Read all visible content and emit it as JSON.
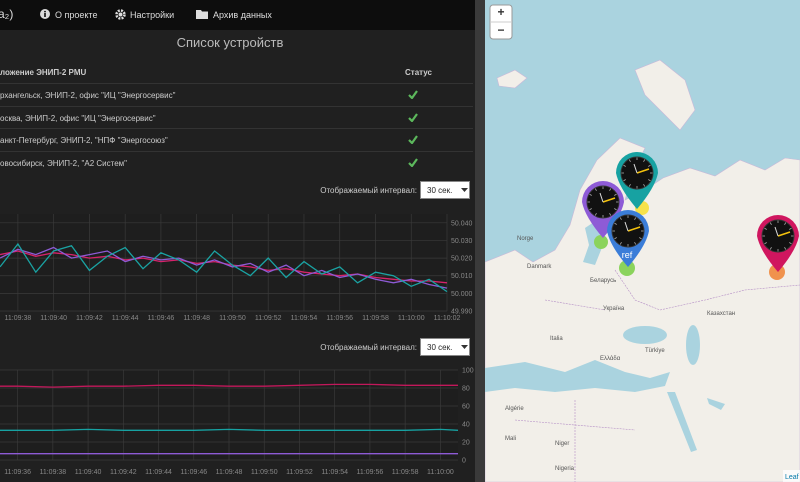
{
  "nav": {
    "logo": "(a₂)",
    "items": [
      "О проекте",
      "Настройки",
      "Архив данных"
    ]
  },
  "devices": {
    "title": "Список устройств",
    "header": [
      "ложение ЭНИП-2 PMU",
      "Статус"
    ],
    "rows": [
      "рхангельск, ЭНИП-2, офис \"ИЦ \"Энергосервис\"",
      "осква, ЭНИП-2, офис \"ИЦ \"Энергосервис\"",
      "анкт-Петербург, ЭНИП-2, \"НПФ \"Энергосоюз\"",
      "овосибирск, ЭНИП-2, \"А2 Систем\""
    ]
  },
  "chart_data": [
    {
      "type": "line",
      "control_label": "Отображаемый интервал:",
      "control_value": "30 сек.",
      "grid": true,
      "x": [
        "11:09:37",
        "11:09:38",
        "11:09:39",
        "11:09:40",
        "11:09:41",
        "11:09:42",
        "11:09:43",
        "11:09:44",
        "11:09:45",
        "11:09:46",
        "11:09:47",
        "11:09:48",
        "11:09:49",
        "11:09:50",
        "11:09:51",
        "11:09:52",
        "11:09:53",
        "11:09:54",
        "11:09:55",
        "11:09:56",
        "11:09:57",
        "11:09:58",
        "11:09:59",
        "11:10:00",
        "11:10:01",
        "11:10:02"
      ],
      "xlim": [
        "11:09:37",
        "11:10:02"
      ],
      "xticks": [
        "11:09:38",
        "11:09:40",
        "11:09:42",
        "11:09:44",
        "11:09:46",
        "11:09:48",
        "11:09:50",
        "11:09:52",
        "11:09:54",
        "11:09:56",
        "11:09:58",
        "11:10:00",
        "11:10:02"
      ],
      "ylim": [
        49.99,
        50.045
      ],
      "yticks": [
        {
          "value": 49.99,
          "label": "49.990"
        },
        {
          "value": 50.0,
          "label": "50.000"
        },
        {
          "value": 50.01,
          "label": "50.010"
        },
        {
          "value": 50.02,
          "label": "50.020"
        },
        {
          "value": 50.03,
          "label": "50.030"
        },
        {
          "value": 50.04,
          "label": "50.040"
        }
      ],
      "series": [
        {
          "color": "#d6236b",
          "values": [
            50.022,
            50.024,
            50.021,
            50.023,
            50.022,
            50.02,
            50.021,
            50.019,
            50.02,
            50.018,
            50.019,
            50.017,
            50.018,
            50.016,
            50.015,
            50.013,
            50.014,
            50.012,
            50.011,
            50.01,
            50.011,
            50.009,
            50.008,
            50.007,
            50.007,
            50.006
          ]
        },
        {
          "color": "#8e5bd6",
          "values": [
            50.02,
            50.025,
            50.022,
            50.026,
            50.02,
            50.022,
            50.024,
            50.018,
            50.021,
            50.019,
            50.02,
            50.016,
            50.019,
            50.015,
            50.017,
            50.012,
            50.016,
            50.01,
            50.013,
            50.009,
            50.011,
            50.008,
            50.006,
            50.008,
            50.005,
            50.003
          ]
        },
        {
          "color": "#1aa3a3",
          "values": [
            50.015,
            50.028,
            50.012,
            50.024,
            50.027,
            50.013,
            50.021,
            50.026,
            50.014,
            50.023,
            50.019,
            50.012,
            50.024,
            50.016,
            50.01,
            50.02,
            50.009,
            50.018,
            50.011,
            50.015,
            50.006,
            50.012,
            50.01,
            50.004,
            50.008,
            50.001
          ]
        }
      ]
    },
    {
      "type": "line",
      "control_label": "Отображаемый интервал:",
      "control_value": "30 сек.",
      "grid": true,
      "x": [
        "11:09:35",
        "11:09:36",
        "11:09:38",
        "11:09:40",
        "11:09:42",
        "11:09:44",
        "11:09:46",
        "11:09:48",
        "11:09:50",
        "11:09:52",
        "11:09:54",
        "11:09:56",
        "11:09:58",
        "11:10:00",
        "11:10:01"
      ],
      "xlim": [
        "11:09:35",
        "11:10:01"
      ],
      "xticks": [
        "11:09:36",
        "11:09:38",
        "11:09:40",
        "11:09:42",
        "11:09:44",
        "11:09:46",
        "11:09:48",
        "11:09:50",
        "11:09:52",
        "11:09:54",
        "11:09:56",
        "11:09:58",
        "11:10:00"
      ],
      "ylim": [
        0,
        100
      ],
      "yticks": [
        0,
        20,
        40,
        60,
        80,
        100
      ],
      "series": [
        {
          "color": "#c2185b",
          "values": [
            82,
            82,
            81,
            82,
            82,
            83,
            83,
            82,
            82,
            83,
            84,
            84,
            83,
            83,
            83
          ]
        },
        {
          "color": "#17a2a2",
          "values": [
            33,
            33,
            33,
            34,
            33,
            33,
            33,
            34,
            33,
            33,
            33,
            33,
            33,
            34,
            33
          ]
        },
        {
          "color": "#8e5bd6",
          "values": [
            7,
            7,
            7,
            7,
            7,
            7,
            7,
            7,
            7,
            7,
            7,
            7,
            7,
            7,
            7
          ]
        }
      ]
    }
  ],
  "map": {
    "zoom": [
      "+",
      "−"
    ],
    "marker_label": "ref",
    "attribution": "Leaf",
    "labels": [
      "Norge",
      "Danmark",
      "Беларусь",
      "Україна",
      "Казахстан",
      "Türkiye",
      "Algérie",
      "Mali",
      "Niger",
      "Nigeria",
      "Ελλάδα",
      "Italia"
    ]
  }
}
